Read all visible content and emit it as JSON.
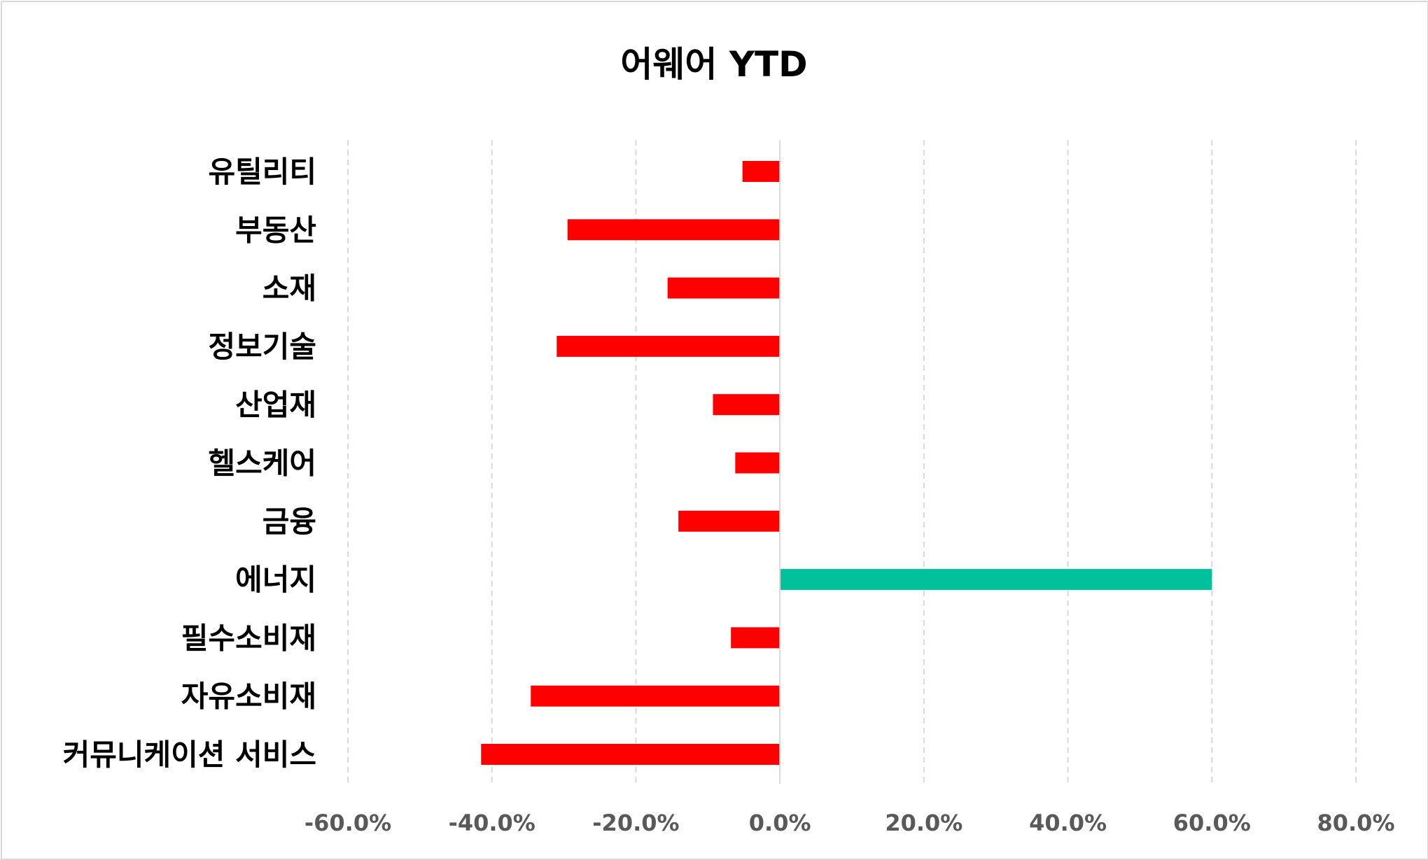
{
  "chart_data": {
    "type": "bar",
    "orientation": "horizontal",
    "title": "어웨어 YTD",
    "xlabel": "",
    "ylabel": "",
    "categories": [
      "유틸리티",
      "부동산",
      "소재",
      "정보기술",
      "산업재",
      "헬스케어",
      "금융",
      "에너지",
      "필수소비재",
      "자유소비재",
      "커뮤니케이션 서비스"
    ],
    "values": [
      -5.2,
      -29.5,
      -15.6,
      -31.0,
      -9.3,
      -6.2,
      -14.1,
      60.0,
      -6.8,
      -34.6,
      -41.5
    ],
    "xlim": [
      -60,
      80
    ],
    "xticks": [
      -60,
      -40,
      -20,
      0,
      20,
      40,
      60,
      80
    ],
    "xtick_labels": [
      "-60.0%",
      "-40.0%",
      "-20.0%",
      "0.0%",
      "20.0%",
      "40.0%",
      "60.0%",
      "80.0%"
    ],
    "grid": "vertical dashed",
    "legend": "none",
    "colors": {
      "negative": "#ff0000",
      "positive": "#00c29a",
      "grid": "#d9d9d9",
      "axis": "#d9d9d9",
      "tick_text": "#595959"
    }
  }
}
